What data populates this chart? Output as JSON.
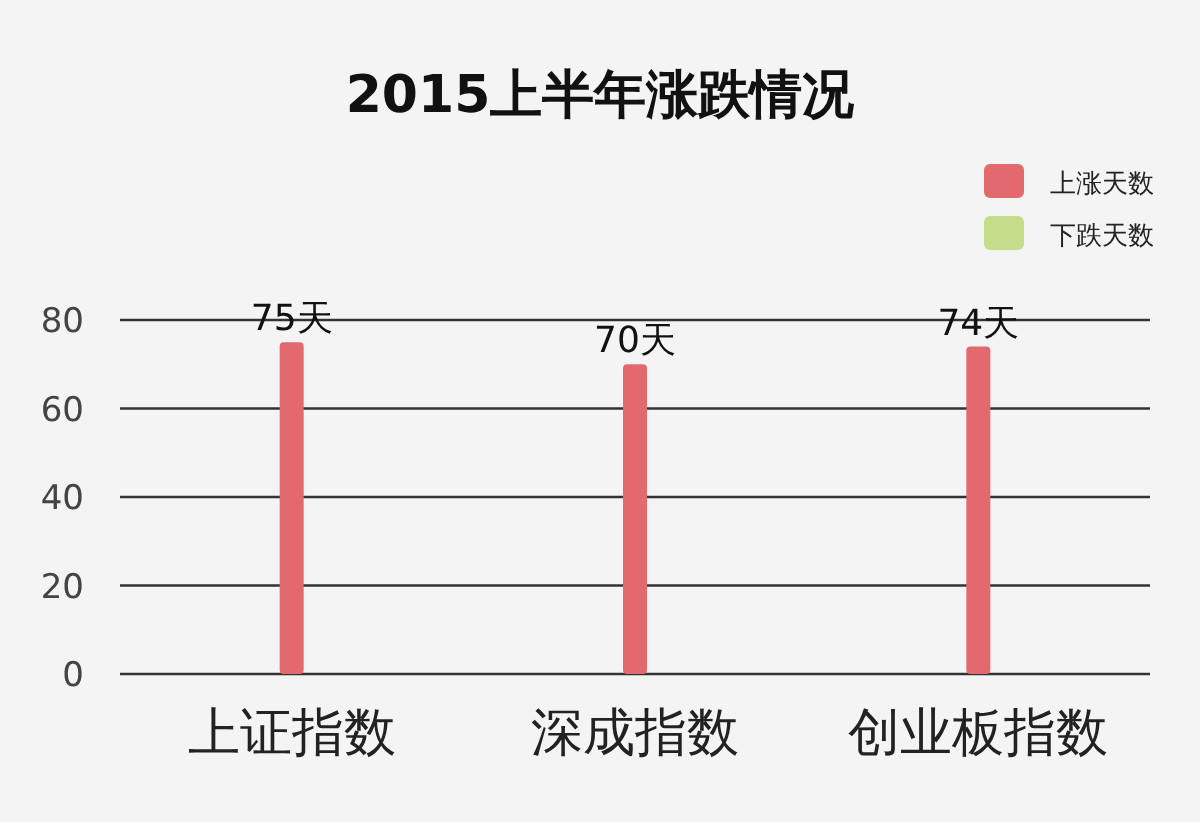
{
  "chart_data": {
    "type": "bar",
    "title": "2015上半年涨跌情况",
    "categories": [
      "上证指数",
      "深成指数",
      "创业板指数"
    ],
    "series": [
      {
        "name": "上涨天数",
        "color": "#e26a6f",
        "values": [
          75,
          70,
          74
        ],
        "value_labels": [
          "75天",
          "70天",
          "74天"
        ]
      },
      {
        "name": "下跌天数",
        "color": "#c5dd8b",
        "values": [
          null,
          null,
          null
        ]
      }
    ],
    "ylim": [
      0,
      80
    ],
    "yticks": [
      0,
      20,
      40,
      60,
      80
    ],
    "grid": "y",
    "legend": "top right"
  }
}
